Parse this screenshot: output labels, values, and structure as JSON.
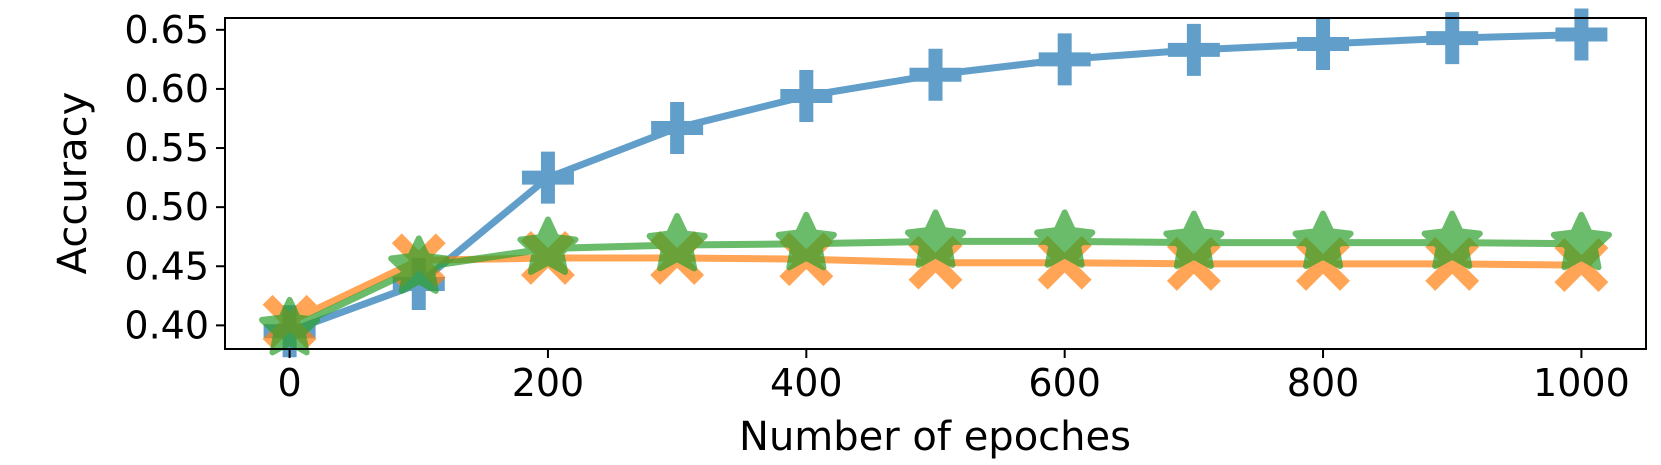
{
  "chart_data": {
    "type": "line",
    "title": "",
    "xlabel": "Number of epoches",
    "ylabel": "Accuracy",
    "xlim": [
      -50,
      1050
    ],
    "ylim": [
      0.38,
      0.66
    ],
    "x_ticks": [
      0,
      200,
      400,
      600,
      800,
      1000
    ],
    "x_tick_labels": [
      "0",
      "200",
      "400",
      "600",
      "800",
      "1000"
    ],
    "y_ticks": [
      0.4,
      0.45,
      0.5,
      0.55,
      0.6,
      0.65
    ],
    "y_tick_labels": [
      "0.40",
      "0.45",
      "0.50",
      "0.55",
      "0.60",
      "0.65"
    ],
    "grid": false,
    "legend": "none",
    "x": [
      0,
      100,
      200,
      300,
      400,
      500,
      600,
      700,
      800,
      900,
      1000
    ],
    "series": [
      {
        "marker": "plus",
        "color": "#1f77b4",
        "values": [
          0.395,
          0.435,
          0.525,
          0.567,
          0.594,
          0.612,
          0.625,
          0.633,
          0.638,
          0.643,
          0.646
        ]
      },
      {
        "marker": "x",
        "color": "#ff7f0e",
        "values": [
          0.403,
          0.455,
          0.457,
          0.457,
          0.456,
          0.453,
          0.453,
          0.452,
          0.452,
          0.452,
          0.451
        ]
      },
      {
        "marker": "star",
        "color": "#2ca02c",
        "values": [
          0.397,
          0.449,
          0.465,
          0.468,
          0.469,
          0.471,
          0.471,
          0.47,
          0.47,
          0.47,
          0.469
        ]
      }
    ]
  }
}
